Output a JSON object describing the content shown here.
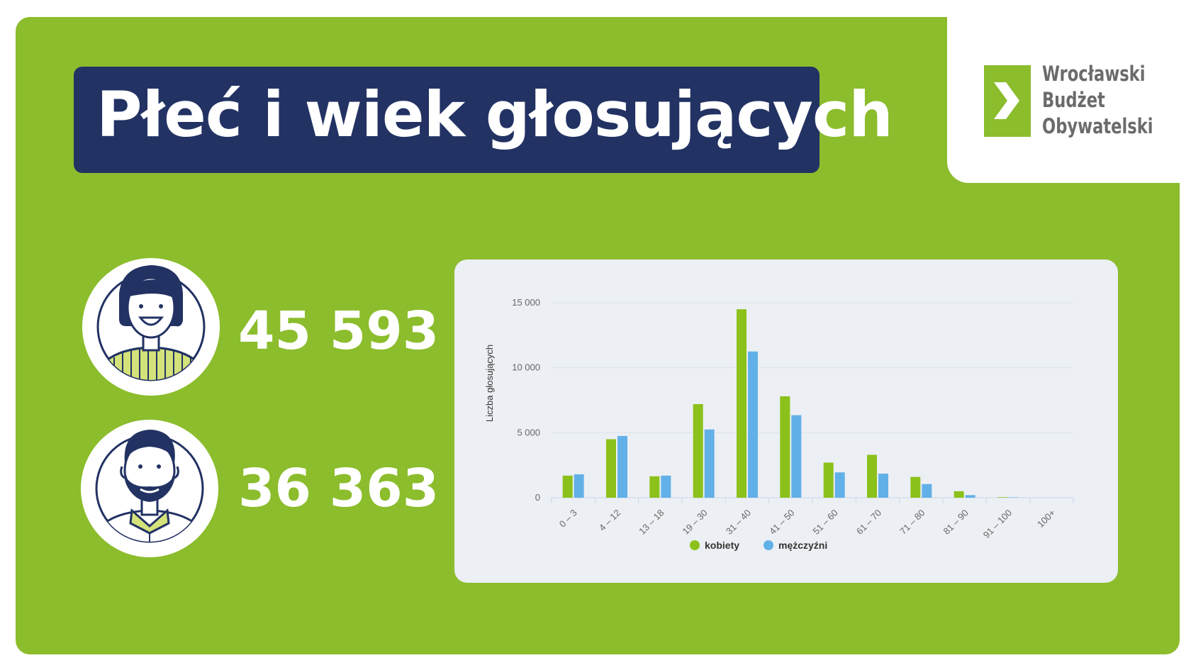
{
  "header": {
    "title": "Płeć i wiek głosujących"
  },
  "logo": {
    "line1": "Wrocławski",
    "line2": "Budżet",
    "line3": "Obywatelski"
  },
  "stats": {
    "women_count": "45 593",
    "men_count": "36 363"
  },
  "colors": {
    "background": "#8bbd2c",
    "title_bg": "#223263",
    "women": "#8bc11a",
    "men": "#62b0e8",
    "card": "#eceff3"
  },
  "icons": {
    "women": "woman-avatar-icon",
    "men": "man-avatar-icon",
    "logo": "chevron-right-icon"
  },
  "chart_data": {
    "type": "bar",
    "ylabel": "Liczba głosujących",
    "ylim": [
      0,
      15000
    ],
    "yticks": [
      "0",
      "5 000",
      "10 000",
      "15 000"
    ],
    "ytick_values": [
      0,
      5000,
      10000,
      15000
    ],
    "categories": [
      "0 – 3",
      "4 – 12",
      "13 – 18",
      "19 – 30",
      "31 – 40",
      "41 – 50",
      "51 – 60",
      "61 – 70",
      "71 – 80",
      "81 – 90",
      "91 – 100",
      "100+"
    ],
    "series": [
      {
        "name": "kobiety",
        "color": "#8bc11a",
        "values": [
          1700,
          4500,
          1650,
          7200,
          14500,
          7800,
          2700,
          3300,
          1600,
          500,
          40,
          0
        ]
      },
      {
        "name": "mężczyźni",
        "color": "#62b0e8",
        "values": [
          1800,
          4750,
          1700,
          5250,
          11250,
          6350,
          1950,
          1850,
          1050,
          200,
          30,
          0
        ]
      }
    ],
    "grid": true,
    "legend": "bottom-center"
  }
}
